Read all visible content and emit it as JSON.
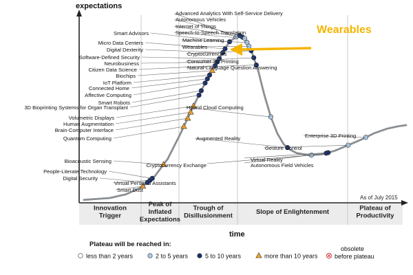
{
  "chart_data": {
    "type": "scatter",
    "y_axis_label": "expectations",
    "x_axis_label": "time",
    "as_of": "As of July 2015",
    "highlight": {
      "label": "Wearables",
      "color": "#f5b400"
    },
    "phases": [
      {
        "lines": [
          "Innovation",
          "Trigger"
        ]
      },
      {
        "lines": [
          "Peak of",
          "Inflated",
          "Expectations"
        ]
      },
      {
        "lines": [
          "Trough of",
          "Disillusionment"
        ]
      },
      {
        "lines": [
          "Slope of Enlightenment"
        ]
      },
      {
        "lines": [
          "Plateau of",
          "Productivity"
        ]
      }
    ],
    "legend": {
      "title": "Plateau will be reached in:",
      "items": [
        {
          "key": "lt2",
          "label": "less than 2 years"
        },
        {
          "key": "2to5",
          "label": "2 to 5 years"
        },
        {
          "key": "5to10",
          "label": "5 to 10 years"
        },
        {
          "key": "gt10",
          "label": "more than 10 years"
        },
        {
          "key": "obs",
          "label_lines": [
            "obsolete",
            "before plateau"
          ]
        }
      ]
    },
    "colors": {
      "curve": "#8a8f94",
      "lt2": "#ffffff",
      "2to5": "#a9c9e8",
      "5to10": "#17306b",
      "gt10": "#f2a22c",
      "obs": "#d63c3c"
    },
    "points": [
      {
        "name": "Smart Dust",
        "t": 0.183,
        "cat": "gt10",
        "side": "right"
      },
      {
        "name": "Virtual Personal Assistants",
        "t": 0.205,
        "cat": "5to10",
        "side": "right"
      },
      {
        "name": "Digital Security",
        "t": 0.197,
        "cat": "5to10",
        "side": "left"
      },
      {
        "name": "People-Literate Technology",
        "t": 0.212,
        "cat": "5to10",
        "side": "left"
      },
      {
        "name": "Bioacoustic Sensing",
        "t": 0.247,
        "cat": "gt10",
        "side": "left"
      },
      {
        "name": "Quantum Computing",
        "t": 0.31,
        "cat": "gt10",
        "side": "left"
      },
      {
        "name": "Brain-Computer Interface",
        "t": 0.322,
        "cat": "gt10",
        "side": "left"
      },
      {
        "name": "Human Augmentation",
        "t": 0.331,
        "cat": "gt10",
        "side": "left"
      },
      {
        "name": "Volumetric Displays",
        "t": 0.34,
        "cat": "gt10",
        "side": "left"
      },
      {
        "name": "3D Bioprinting Systems for Organ Transplant",
        "t": 0.357,
        "cat": "5to10",
        "side": "left"
      },
      {
        "name": "Smart Robots",
        "t": 0.364,
        "cat": "5to10",
        "side": "left"
      },
      {
        "name": "Affective  Computing",
        "t": 0.376,
        "cat": "5to10",
        "side": "left"
      },
      {
        "name": "Connected Home",
        "t": 0.383,
        "cat": "5to10",
        "side": "left"
      },
      {
        "name": "IoT Platform",
        "t": 0.39,
        "cat": "5to10",
        "side": "left"
      },
      {
        "name": "Biochips",
        "t": 0.398,
        "cat": "gt10",
        "side": "left"
      },
      {
        "name": "Citizen Data Science",
        "t": 0.407,
        "cat": "5to10",
        "side": "left"
      },
      {
        "name": "Neurobusiness",
        "t": 0.414,
        "cat": "5to10",
        "side": "left"
      },
      {
        "name": "Software-Defined Security",
        "t": 0.42,
        "cat": "5to10",
        "side": "left"
      },
      {
        "name": "Digital Dexterity",
        "t": 0.431,
        "cat": "5to10",
        "side": "left"
      },
      {
        "name": "Micro Data Centers",
        "t": 0.438,
        "cat": "5to10",
        "side": "left"
      },
      {
        "name": "Smart Advisors",
        "t": 0.452,
        "cat": "5to10",
        "side": "left"
      },
      {
        "name": "Advanced Analytics With Self-Service Delivery",
        "t": 0.472,
        "cat": "2to5",
        "side": "right"
      },
      {
        "name": "Autonomous Vehicles",
        "t": 0.483,
        "cat": "5to10",
        "side": "right"
      },
      {
        "name": "Internet of Things",
        "t": 0.492,
        "cat": "5to10",
        "side": "right"
      },
      {
        "name": "Speech-to-Speech Translation",
        "t": 0.499,
        "cat": "2to5",
        "side": "right"
      },
      {
        "name": "Machine Learning",
        "t": 0.506,
        "cat": "2to5",
        "side": "right"
      },
      {
        "name": "Wearables",
        "t": 0.512,
        "cat": "2to5",
        "side": "right"
      },
      {
        "name": "Cryptocurrencies",
        "t": 0.519,
        "cat": "5to10",
        "side": "right"
      },
      {
        "name": "Consumer 3D Printing",
        "t": 0.527,
        "cat": "5to10",
        "side": "right"
      },
      {
        "name": "Natural-Language Question Answering",
        "t": 0.535,
        "cat": "5to10",
        "side": "right"
      },
      {
        "name": "Hybrid Cloud Computing",
        "t": 0.58,
        "cat": "2to5",
        "side": "right"
      },
      {
        "name": "Augmented Reality",
        "t": 0.632,
        "cat": "5to10",
        "side": "right"
      },
      {
        "name": "Cryptocurrency Exchange",
        "t": 0.706,
        "cat": "2to5",
        "side": "left"
      },
      {
        "name": "Virtual Reality",
        "t": 0.758,
        "cat": "5to10",
        "side": "right"
      },
      {
        "name": "Autonomous Field Vehicles",
        "t": 0.752,
        "cat": "5to10",
        "side": "right"
      },
      {
        "name": "Gesture Control",
        "t": 0.82,
        "cat": "2to5",
        "side": "right"
      },
      {
        "name": "Enterprise 3D Printing",
        "t": 0.875,
        "cat": "2to5",
        "side": "right"
      }
    ]
  }
}
